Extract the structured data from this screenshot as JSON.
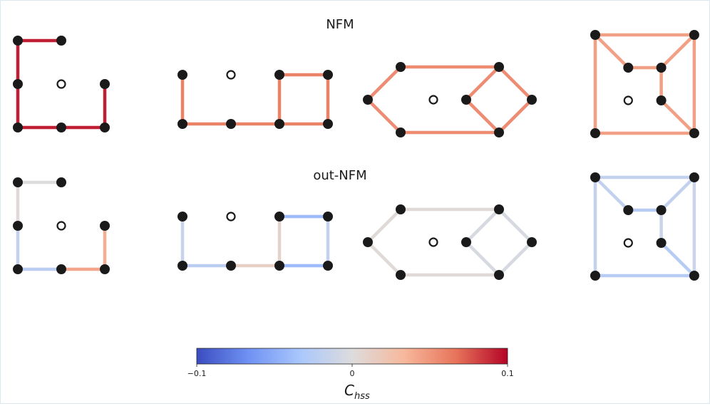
{
  "rows": [
    {
      "title": "NFM"
    },
    {
      "title": "out-NFM"
    }
  ],
  "colorbar": {
    "label_main": "C",
    "label_sub": "hss",
    "min": -0.1,
    "max": 0.1,
    "ticks": [
      {
        "value": -0.1,
        "label": "−0.1"
      },
      {
        "value": 0,
        "label": "0"
      },
      {
        "value": 0.1,
        "label": "0.1"
      }
    ],
    "colormap": "coolwarm",
    "stops": [
      "#3b4cc0",
      "#6f92f3",
      "#aac7fd",
      "#dddcdc",
      "#f7b89c",
      "#e7745b",
      "#b40426"
    ]
  },
  "graphs": [
    {
      "id": "L-shape",
      "nodes": [
        {
          "id": "a",
          "x": 0,
          "y": 0
        },
        {
          "id": "b",
          "x": 1,
          "y": 0
        },
        {
          "id": "c",
          "x": 0,
          "y": 1
        },
        {
          "id": "d",
          "x": 1,
          "y": 1,
          "hollow": true
        },
        {
          "id": "e",
          "x": 2,
          "y": 1
        },
        {
          "id": "f",
          "x": 0,
          "y": 2
        },
        {
          "id": "g",
          "x": 1,
          "y": 2
        },
        {
          "id": "h",
          "x": 2,
          "y": 2
        }
      ],
      "edges": [
        {
          "from": "a",
          "to": "b",
          "nfm": 0.092,
          "out_nfm": 0.0
        },
        {
          "from": "a",
          "to": "c",
          "nfm": 0.092,
          "out_nfm": 0.002
        },
        {
          "from": "c",
          "to": "f",
          "nfm": 0.092,
          "out_nfm": -0.018
        },
        {
          "from": "f",
          "to": "g",
          "nfm": 0.092,
          "out_nfm": -0.022
        },
        {
          "from": "g",
          "to": "h",
          "nfm": 0.092,
          "out_nfm": 0.042
        },
        {
          "from": "h",
          "to": "e",
          "nfm": 0.092,
          "out_nfm": 0.038
        }
      ]
    },
    {
      "id": "square-with-tail",
      "nodes": [
        {
          "id": "a",
          "x": 0,
          "y": 0
        },
        {
          "id": "b",
          "x": 1,
          "y": 0,
          "hollow": true
        },
        {
          "id": "c",
          "x": 2,
          "y": 0
        },
        {
          "id": "d",
          "x": 3,
          "y": 0
        },
        {
          "id": "e",
          "x": 0,
          "y": 1
        },
        {
          "id": "f",
          "x": 1,
          "y": 1
        },
        {
          "id": "g",
          "x": 2,
          "y": 1
        },
        {
          "id": "h",
          "x": 3,
          "y": 1
        }
      ],
      "edges": [
        {
          "from": "a",
          "to": "e",
          "nfm": 0.06,
          "out_nfm": -0.015
        },
        {
          "from": "e",
          "to": "f",
          "nfm": 0.06,
          "out_nfm": -0.022
        },
        {
          "from": "f",
          "to": "g",
          "nfm": 0.06,
          "out_nfm": 0.012
        },
        {
          "from": "g",
          "to": "h",
          "nfm": 0.06,
          "out_nfm": -0.04
        },
        {
          "from": "c",
          "to": "d",
          "nfm": 0.06,
          "out_nfm": -0.04
        },
        {
          "from": "c",
          "to": "g",
          "nfm": 0.06,
          "out_nfm": 0.008
        },
        {
          "from": "d",
          "to": "h",
          "nfm": 0.06,
          "out_nfm": -0.018
        }
      ]
    },
    {
      "id": "hexagon-diamond",
      "nodes": [
        {
          "id": "l",
          "x": 0,
          "y": 1
        },
        {
          "id": "tl",
          "x": 1,
          "y": 0
        },
        {
          "id": "bl",
          "x": 1,
          "y": 2
        },
        {
          "id": "c",
          "x": 2,
          "y": 1,
          "hollow": true
        },
        {
          "id": "m",
          "x": 3,
          "y": 1
        },
        {
          "id": "tr",
          "x": 4,
          "y": 0
        },
        {
          "id": "br",
          "x": 4,
          "y": 2
        },
        {
          "id": "r",
          "x": 5,
          "y": 1
        }
      ],
      "edges": [
        {
          "from": "l",
          "to": "tl",
          "nfm": 0.055,
          "out_nfm": 0.002
        },
        {
          "from": "l",
          "to": "bl",
          "nfm": 0.055,
          "out_nfm": 0.002
        },
        {
          "from": "tl",
          "to": "tr",
          "nfm": 0.055,
          "out_nfm": 0.002
        },
        {
          "from": "bl",
          "to": "br",
          "nfm": 0.055,
          "out_nfm": 0.002
        },
        {
          "from": "tr",
          "to": "m",
          "nfm": 0.055,
          "out_nfm": -0.004
        },
        {
          "from": "br",
          "to": "m",
          "nfm": 0.055,
          "out_nfm": -0.004
        },
        {
          "from": "tr",
          "to": "r",
          "nfm": 0.055,
          "out_nfm": -0.004
        },
        {
          "from": "br",
          "to": "r",
          "nfm": 0.055,
          "out_nfm": -0.004
        }
      ]
    },
    {
      "id": "nested-square",
      "nodes": [
        {
          "id": "o1",
          "x": 0,
          "y": 0
        },
        {
          "id": "o2",
          "x": 3,
          "y": 0
        },
        {
          "id": "o3",
          "x": 0,
          "y": 3
        },
        {
          "id": "o4",
          "x": 3,
          "y": 3
        },
        {
          "id": "i1",
          "x": 1,
          "y": 1
        },
        {
          "id": "i2",
          "x": 2,
          "y": 1
        },
        {
          "id": "i3",
          "x": 1,
          "y": 2,
          "hollow": true
        },
        {
          "id": "i4",
          "x": 2,
          "y": 2
        }
      ],
      "edges": [
        {
          "from": "o1",
          "to": "o2",
          "nfm": 0.045,
          "out_nfm": -0.018
        },
        {
          "from": "o1",
          "to": "o3",
          "nfm": 0.045,
          "out_nfm": -0.018
        },
        {
          "from": "o3",
          "to": "o4",
          "nfm": 0.045,
          "out_nfm": -0.025
        },
        {
          "from": "o2",
          "to": "o4",
          "nfm": 0.045,
          "out_nfm": -0.012
        },
        {
          "from": "o1",
          "to": "i1",
          "nfm": 0.045,
          "out_nfm": -0.018
        },
        {
          "from": "o2",
          "to": "i2",
          "nfm": 0.045,
          "out_nfm": -0.018
        },
        {
          "from": "o4",
          "to": "i4",
          "nfm": 0.045,
          "out_nfm": -0.025
        },
        {
          "from": "i1",
          "to": "i2",
          "nfm": 0.045,
          "out_nfm": -0.025
        },
        {
          "from": "i2",
          "to": "i4",
          "nfm": 0.045,
          "out_nfm": -0.012
        }
      ]
    }
  ]
}
